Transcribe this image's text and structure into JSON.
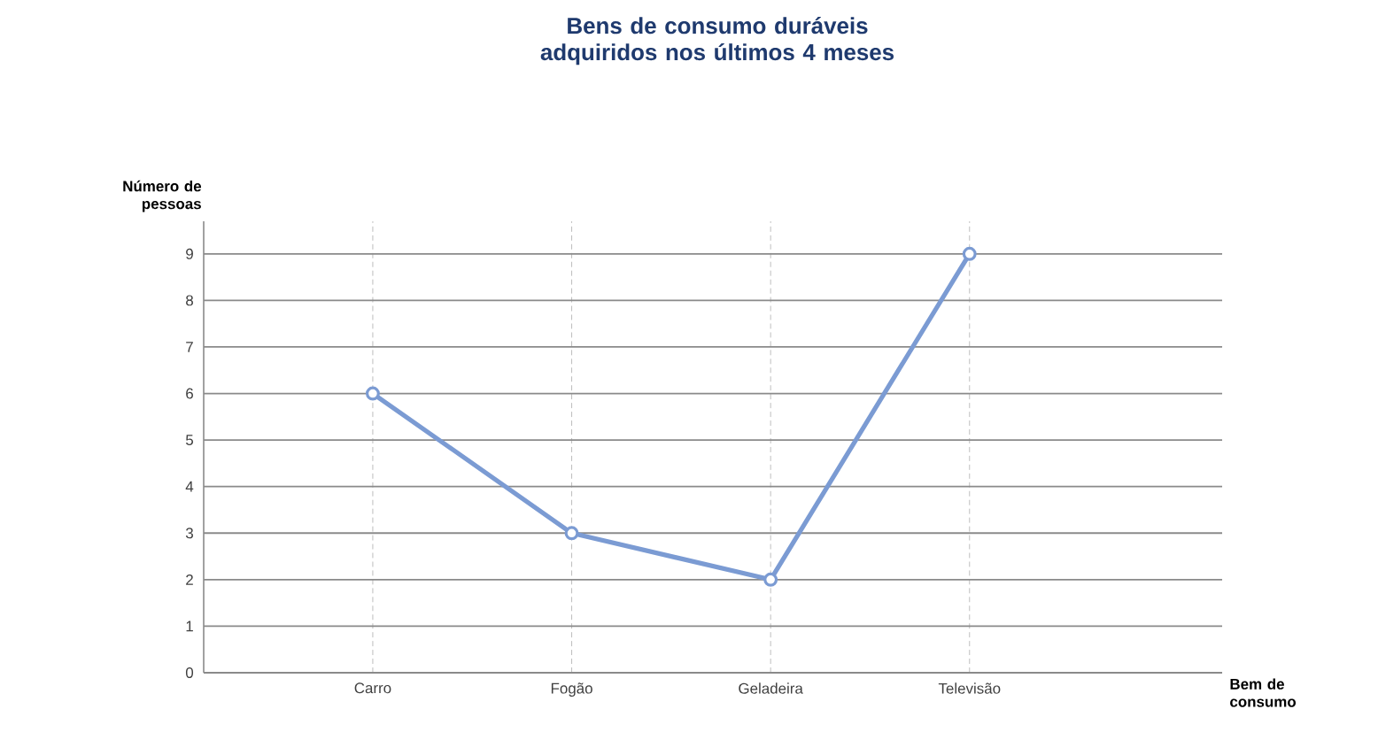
{
  "chart_data": {
    "type": "line",
    "title": "Bens de consumo duráveis adquiridos nos últimos 4 meses",
    "xlabel": "Bem de consumo",
    "ylabel": "Número de pessoas",
    "categories": [
      "Carro",
      "Fogão",
      "Geladeira",
      "Televisão"
    ],
    "series": [
      {
        "color": "#7b9bd3",
        "values": [
          6,
          3,
          2,
          9
        ]
      }
    ],
    "ylim": [
      0,
      9.7
    ],
    "yticks": [
      0,
      1,
      2,
      3,
      4,
      5,
      6,
      7,
      8,
      9
    ],
    "grid": true,
    "marker": "circle",
    "line_style": "solid"
  }
}
